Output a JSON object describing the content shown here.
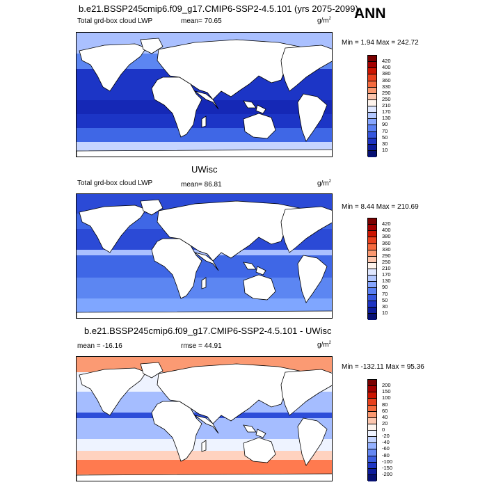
{
  "season": "ANN",
  "panels": [
    {
      "title": "b.e21.BSSP245cmip6.f09_g17.CMIP6-SSP2-4.5.101 (yrs 2075-2099)",
      "left_label": "Total grd-box cloud LWP",
      "center_label": "mean=  70.65",
      "units": "g/m",
      "units_sup": "2",
      "minmax": "Min =   1.94 Max = 242.72",
      "colorbar_labels": [
        "420",
        "400",
        "380",
        "360",
        "330",
        "290",
        "250",
        "210",
        "170",
        "130",
        "90",
        "70",
        "50",
        "30",
        "10"
      ],
      "colors": [
        "#e1e8ff",
        "#c6d5ff",
        "#aac0ff",
        "#7fa6ff",
        "#5c86f2",
        "#3f67e6",
        "#2b4ad6",
        "#1c35c6",
        "#1528b6",
        "#0e1e96"
      ]
    },
    {
      "title": "UWisc",
      "left_label": "Total grd-box cloud LWP",
      "center_label": "mean=  86.81",
      "units": "g/m",
      "units_sup": "2",
      "minmax": "Min =   8.44 Max = 210.69",
      "colorbar_labels": [
        "420",
        "400",
        "380",
        "360",
        "330",
        "290",
        "250",
        "210",
        "170",
        "130",
        "90",
        "70",
        "50",
        "30",
        "10"
      ],
      "colors": [
        "#e1e8ff",
        "#c6d5ff",
        "#aac0ff",
        "#7fa6ff",
        "#5c86f2",
        "#3f67e6",
        "#2b4ad6",
        "#1c35c6",
        "#1528b6",
        "#0e1e96"
      ]
    },
    {
      "title": "b.e21.BSSP245cmip6.f09_g17.CMIP6-SSP2-4.5.101 - UWisc",
      "left_label": "mean = -16.16",
      "center_label": "rmse =  44.91",
      "units": "g/m",
      "units_sup": "2",
      "minmax": "Min = -132.11 Max =  95.36",
      "colorbar_labels": [
        "200",
        "150",
        "100",
        "80",
        "60",
        "40",
        "20",
        "0",
        "-20",
        "-40",
        "-60",
        "-80",
        "-100",
        "-150",
        "-200"
      ],
      "colors": [
        "#ff7a4f",
        "#fb9a73",
        "#ffd2bf",
        "#eef3ff",
        "#cfdcff",
        "#a5bdff",
        "#7a9cff",
        "#4f72f0",
        "#2d4dd8",
        "#1b33bd"
      ]
    }
  ],
  "colorbar_fill": {
    "seq": [
      "#7a0000",
      "#a30000",
      "#cc1400",
      "#e8401d",
      "#f56a3e",
      "#fa9870",
      "#fcc6ae",
      "#fdf3ec",
      "#dfe7ff",
      "#b3c8ff",
      "#87a6ff",
      "#5a7ff2",
      "#3656dd",
      "#1d33c2",
      "#0d1c9b",
      "#061073"
    ],
    "div": [
      "#7a0000",
      "#a30000",
      "#cc1400",
      "#e8401d",
      "#f56a3e",
      "#fa9870",
      "#fcc6ae",
      "#fdf3ec",
      "#eef3ff",
      "#c3d4ff",
      "#94b1ff",
      "#6487f3",
      "#3b5ddf",
      "#1f37c4",
      "#0d1c9b",
      "#061073"
    ]
  }
}
